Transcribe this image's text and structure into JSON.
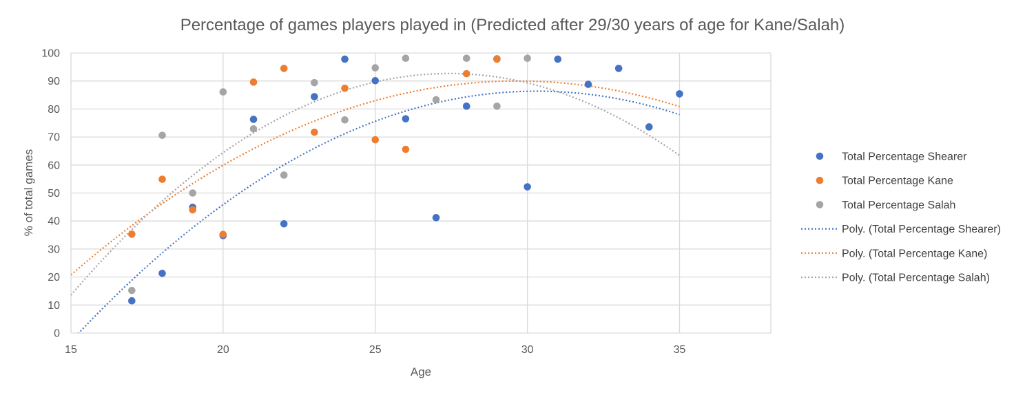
{
  "chart_data": {
    "type": "scatter",
    "title": "Percentage of games players played in (Predicted after 29/30 years of age for Kane/Salah)",
    "xlabel": "Age",
    "ylabel": "% of total games",
    "xlim": [
      15,
      38
    ],
    "ylim": [
      0,
      100
    ],
    "x_ticks": [
      "15",
      "20",
      "25",
      "30",
      "35"
    ],
    "y_ticks": [
      "0",
      "10",
      "20",
      "30",
      "40",
      "50",
      "60",
      "70",
      "80",
      "90",
      "100"
    ],
    "grid": true,
    "legend_position": "right",
    "series": [
      {
        "name": "Total Percentage Shearer",
        "color": "#4472C4",
        "points": [
          [
            17,
            11.5
          ],
          [
            18,
            21.3
          ],
          [
            19,
            44.9
          ],
          [
            20,
            34.8
          ],
          [
            21,
            76.3
          ],
          [
            22,
            39
          ],
          [
            23,
            84.4
          ],
          [
            24,
            97.8
          ],
          [
            25,
            90.1
          ],
          [
            26,
            76.5
          ],
          [
            27,
            41.2
          ],
          [
            28,
            81
          ],
          [
            29,
            97.9
          ],
          [
            30,
            52.2
          ],
          [
            31,
            97.8
          ],
          [
            32,
            88.8
          ],
          [
            33,
            94.5
          ],
          [
            34,
            73.6
          ],
          [
            35,
            85.4
          ]
        ]
      },
      {
        "name": "Total Percentage Kane",
        "color": "#ED7D31",
        "points": [
          [
            17,
            35.3
          ],
          [
            18,
            54.9
          ],
          [
            19,
            44
          ],
          [
            20,
            35.2
          ],
          [
            21,
            89.6
          ],
          [
            22,
            94.5
          ],
          [
            23,
            71.7
          ],
          [
            24,
            87.4
          ],
          [
            25,
            69
          ],
          [
            26,
            65.6
          ],
          [
            28,
            92.6
          ],
          [
            29,
            97.8
          ]
        ]
      },
      {
        "name": "Total Percentage Salah",
        "color": "#A5A5A5",
        "points": [
          [
            17,
            15.2
          ],
          [
            18,
            70.6
          ],
          [
            19,
            50
          ],
          [
            20,
            86.1
          ],
          [
            21,
            72.9
          ],
          [
            22,
            56.4
          ],
          [
            23,
            89.4
          ],
          [
            24,
            76.1
          ],
          [
            25,
            94.7
          ],
          [
            26,
            98.1
          ],
          [
            27,
            83.3
          ],
          [
            28,
            98.1
          ],
          [
            29,
            81
          ],
          [
            30,
            98.1
          ]
        ]
      }
    ],
    "trendlines": [
      {
        "name": "Poly. (Total Percentage Shearer)",
        "color": "#4472C4",
        "type": "polynomial",
        "order": 2,
        "x_range": [
          15,
          35
        ]
      },
      {
        "name": "Poly. (Total Percentage Kane)",
        "color": "#ED7D31",
        "type": "polynomial",
        "order": 2,
        "x_range": [
          15,
          35
        ]
      },
      {
        "name": "Poly. (Total Percentage Salah)",
        "color": "#A5A5A5",
        "type": "polynomial",
        "order": 2,
        "x_range": [
          15,
          35
        ]
      }
    ]
  }
}
